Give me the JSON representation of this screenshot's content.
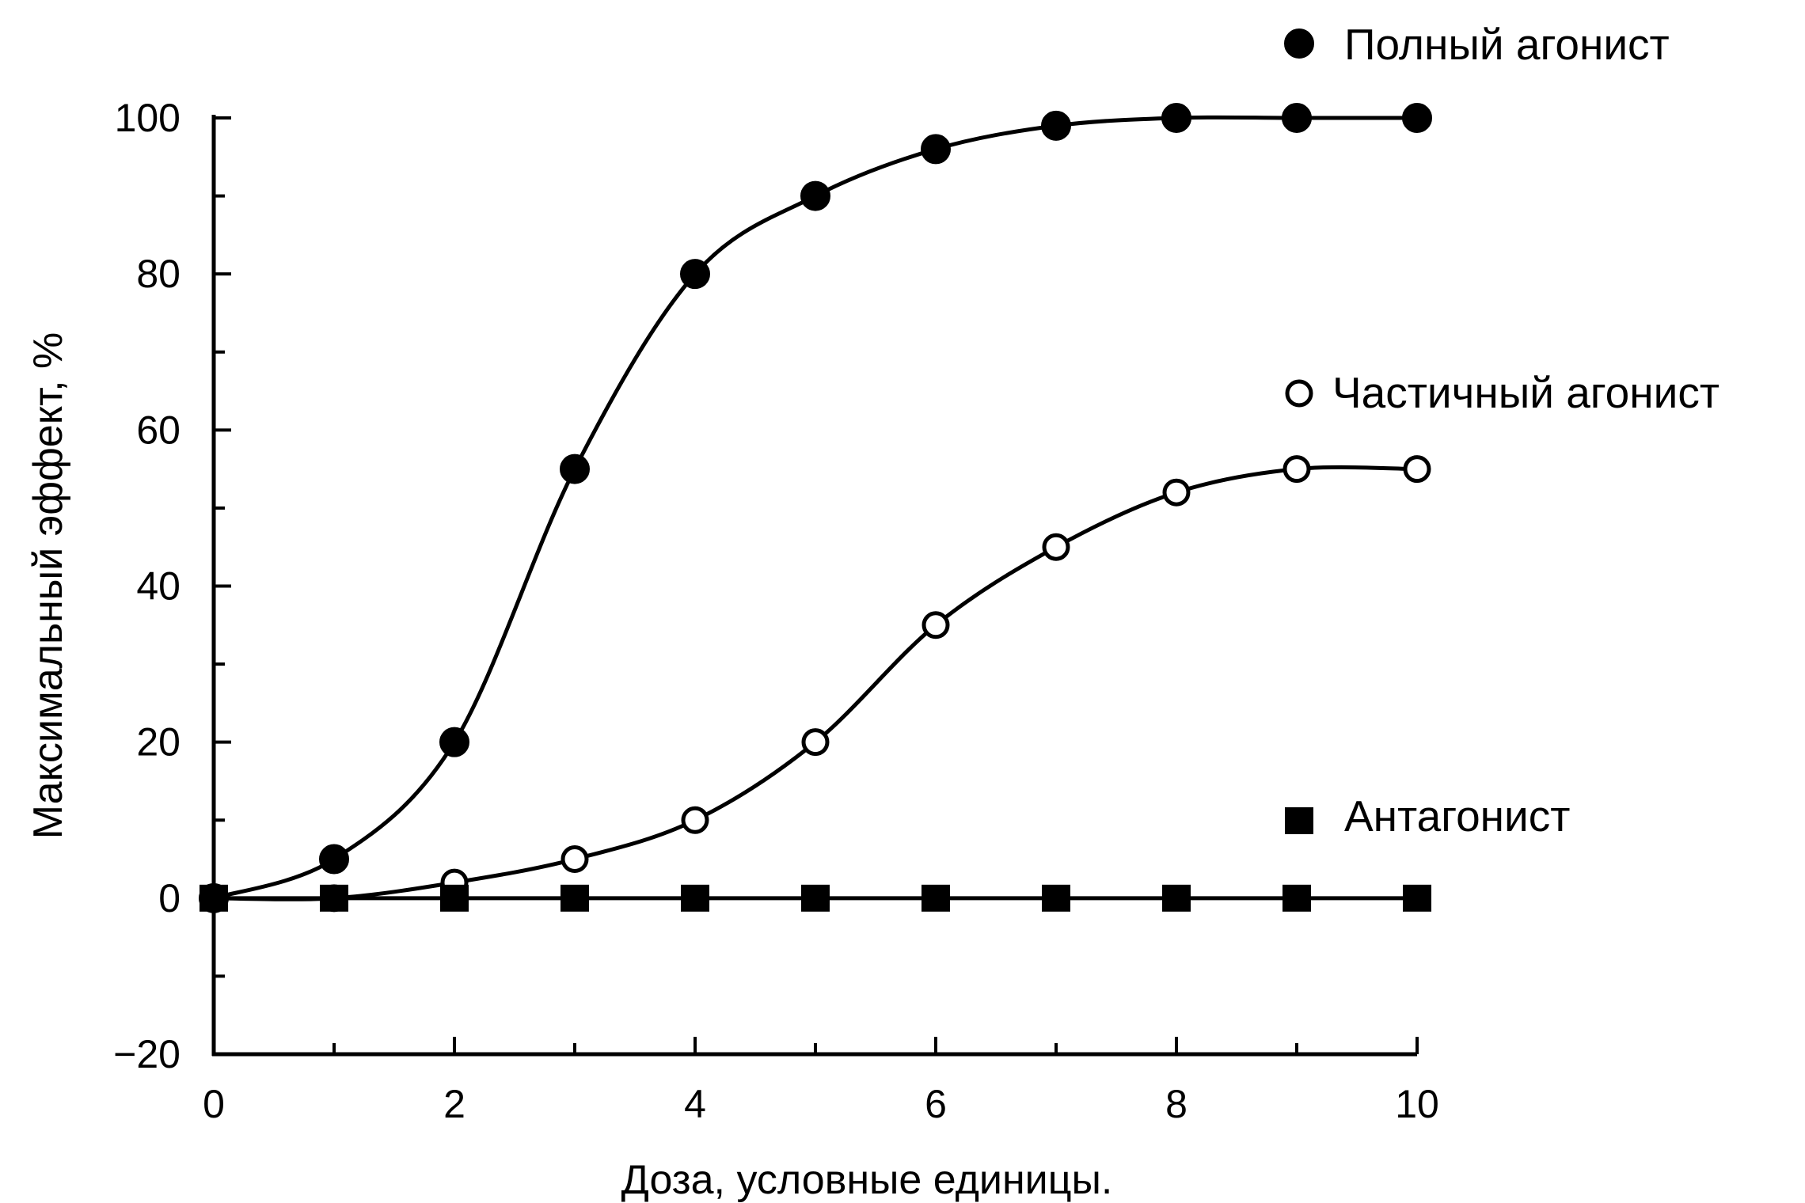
{
  "chart_data": {
    "type": "line",
    "xlabel": "Доза, условные единицы.",
    "ylabel": "Максимальный эффект, %",
    "xlim": [
      0,
      10
    ],
    "ylim": [
      -20,
      100
    ],
    "x_ticks": [
      0,
      2,
      4,
      6,
      8,
      10
    ],
    "x_tick_labels": [
      "0",
      "2",
      "4",
      "6",
      "8",
      "10"
    ],
    "y_ticks": [
      -20,
      0,
      20,
      40,
      60,
      80,
      100
    ],
    "y_tick_labels": [
      "−20",
      "0",
      "20",
      "40",
      "60",
      "80",
      "100"
    ],
    "grid": false,
    "legend_placement": "right",
    "x": [
      0,
      1,
      2,
      3,
      4,
      5,
      6,
      7,
      8,
      9,
      10
    ],
    "series": [
      {
        "name": "Полный агонист",
        "marker": "filled-circle",
        "color": "#000000",
        "values": [
          0,
          5,
          20,
          55,
          80,
          90,
          96,
          99,
          100,
          100,
          100
        ]
      },
      {
        "name": "Частичный агонист",
        "marker": "open-circle",
        "color": "#000000",
        "values": [
          0,
          0,
          2,
          5,
          10,
          20,
          35,
          45,
          52,
          55,
          55
        ]
      },
      {
        "name": "Антагонист",
        "marker": "filled-square",
        "color": "#000000",
        "values": [
          0,
          0,
          0,
          0,
          0,
          0,
          0,
          0,
          0,
          0,
          0
        ]
      }
    ]
  }
}
